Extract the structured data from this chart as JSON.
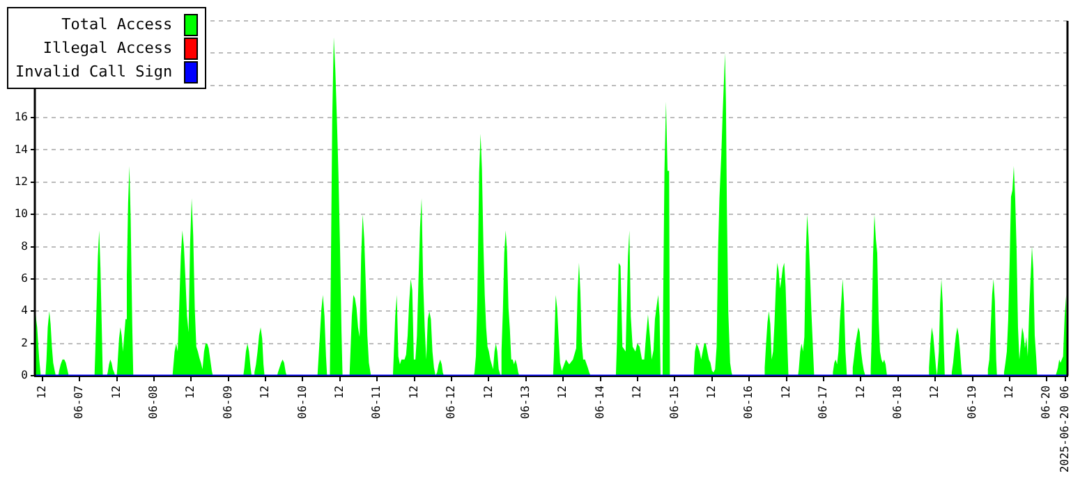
{
  "chart_data": {
    "type": "area",
    "legend": "top left",
    "grid": "y",
    "xlim": [
      "2025-06-06T09:35",
      "2025-06-20T06:40"
    ],
    "ylim": [
      0,
      22
    ],
    "yticks": [
      0,
      2,
      4,
      6,
      8,
      10,
      12,
      14,
      16,
      {
        "value": 18,
        "label": null
      },
      {
        "value": 20,
        "label": null
      },
      {
        "value": 22,
        "label": null
      }
    ],
    "xticks": [
      {
        "value": "2025-06-06T12:00",
        "label": "12"
      },
      {
        "value": "2025-06-07T00:00",
        "label": "06-07"
      },
      {
        "value": "2025-06-07T12:00",
        "label": "12"
      },
      {
        "value": "2025-06-08T00:00",
        "label": "06-08"
      },
      {
        "value": "2025-06-08T12:00",
        "label": "12"
      },
      {
        "value": "2025-06-09T00:00",
        "label": "06-09"
      },
      {
        "value": "2025-06-09T12:00",
        "label": "12"
      },
      {
        "value": "2025-06-10T00:00",
        "label": "06-10"
      },
      {
        "value": "2025-06-10T12:00",
        "label": "12"
      },
      {
        "value": "2025-06-11T00:00",
        "label": "06-11"
      },
      {
        "value": "2025-06-11T12:00",
        "label": "12"
      },
      {
        "value": "2025-06-12T00:00",
        "label": "06-12"
      },
      {
        "value": "2025-06-12T12:00",
        "label": "12"
      },
      {
        "value": "2025-06-13T00:00",
        "label": "06-13"
      },
      {
        "value": "2025-06-13T12:00",
        "label": "12"
      },
      {
        "value": "2025-06-14T00:00",
        "label": "06-14"
      },
      {
        "value": "2025-06-14T12:00",
        "label": "12"
      },
      {
        "value": "2025-06-15T00:00",
        "label": "06-15"
      },
      {
        "value": "2025-06-15T12:00",
        "label": "12"
      },
      {
        "value": "2025-06-16T00:00",
        "label": "06-16"
      },
      {
        "value": "2025-06-16T12:00",
        "label": "12"
      },
      {
        "value": "2025-06-17T00:00",
        "label": "06-17"
      },
      {
        "value": "2025-06-17T12:00",
        "label": "12"
      },
      {
        "value": "2025-06-18T00:00",
        "label": "06-18"
      },
      {
        "value": "2025-06-18T12:00",
        "label": "12"
      },
      {
        "value": "2025-06-19T00:00",
        "label": "06-19"
      },
      {
        "value": "2025-06-19T12:00",
        "label": "12"
      },
      {
        "value": "2025-06-20T00:00",
        "label": "06-20"
      },
      {
        "value": "2025-06-20T06:00",
        "label": "2025-06-20 06"
      }
    ],
    "series": [
      {
        "name": "Total Access",
        "color": "#00ff00",
        "x": [
          "2025-06-06T09:40",
          "2025-06-06T10:20",
          "2025-06-06T11:00",
          "2025-06-06T11:30",
          "2025-06-06T13:00",
          "2025-06-06T13:20",
          "2025-06-06T13:45",
          "2025-06-06T14:15",
          "2025-06-06T14:40",
          "2025-06-06T15:05",
          "2025-06-06T15:30",
          "2025-06-06T16:00",
          "2025-06-06T16:20",
          "2025-06-06T17:10",
          "2025-06-06T17:25",
          "2025-06-06T17:55",
          "2025-06-06T18:30",
          "2025-06-06T19:05",
          "2025-06-06T19:35",
          "2025-06-06T20:10",
          "2025-06-06T20:30",
          "2025-06-07T04:50",
          "2025-06-07T05:05",
          "2025-06-07T05:30",
          "2025-06-07T05:55",
          "2025-06-07T06:20",
          "2025-06-07T06:45",
          "2025-06-07T07:15",
          "2025-06-07T07:30",
          "2025-06-07T08:50",
          "2025-06-07T09:05",
          "2025-06-07T09:30",
          "2025-06-07T09:55",
          "2025-06-07T10:20",
          "2025-06-07T10:45",
          "2025-06-07T11:10",
          "2025-06-07T11:30",
          "2025-06-07T12:00",
          "2025-06-07T12:15",
          "2025-06-07T12:45",
          "2025-06-07T13:10",
          "2025-06-07T13:35",
          "2025-06-07T14:00",
          "2025-06-07T14:25",
          "2025-06-07T14:50",
          "2025-06-07T15:15",
          "2025-06-07T15:40",
          "2025-06-07T16:05",
          "2025-06-07T16:30",
          "2025-06-07T17:00",
          "2025-06-07T17:20",
          "2025-06-08T06:00",
          "2025-06-08T06:10",
          "2025-06-08T06:40",
          "2025-06-08T07:10",
          "2025-06-08T07:40",
          "2025-06-08T08:10",
          "2025-06-08T08:40",
          "2025-06-08T09:10",
          "2025-06-08T09:40",
          "2025-06-08T10:10",
          "2025-06-08T10:40",
          "2025-06-08T11:10",
          "2025-06-08T11:40",
          "2025-06-08T12:10",
          "2025-06-08T12:40",
          "2025-06-08T13:10",
          "2025-06-08T13:40",
          "2025-06-08T14:10",
          "2025-06-08T14:40",
          "2025-06-08T15:10",
          "2025-06-08T15:40",
          "2025-06-08T16:10",
          "2025-06-08T16:40",
          "2025-06-08T17:10",
          "2025-06-08T17:40",
          "2025-06-08T18:10",
          "2025-06-08T18:40",
          "2025-06-08T19:00",
          "2025-06-09T04:50",
          "2025-06-09T05:10",
          "2025-06-09T05:40",
          "2025-06-09T06:10",
          "2025-06-09T06:40",
          "2025-06-09T07:10",
          "2025-06-09T07:30",
          "2025-06-09T08:10",
          "2025-06-09T08:25",
          "2025-06-09T08:55",
          "2025-06-09T09:25",
          "2025-06-09T09:55",
          "2025-06-09T10:25",
          "2025-06-09T10:55",
          "2025-06-09T11:20",
          "2025-06-09T11:40",
          "2025-06-09T15:45",
          "2025-06-09T16:00",
          "2025-06-09T16:30",
          "2025-06-09T17:00",
          "2025-06-09T17:30",
          "2025-06-09T18:00",
          "2025-06-09T18:30",
          "2025-06-09T18:50",
          "2025-06-10T04:45",
          "2025-06-10T05:00",
          "2025-06-10T05:30",
          "2025-06-10T06:00",
          "2025-06-10T06:30",
          "2025-06-10T07:00",
          "2025-06-10T07:30",
          "2025-06-10T07:50",
          "2025-06-10T08:45",
          "2025-06-10T09:00",
          "2025-06-10T09:30",
          "2025-06-10T10:00",
          "2025-06-10T10:30",
          "2025-06-10T11:00",
          "2025-06-10T11:30",
          "2025-06-10T12:00",
          "2025-06-10T12:30",
          "2025-06-10T12:50",
          "2025-06-10T15:05",
          "2025-06-10T15:20",
          "2025-06-10T15:50",
          "2025-06-10T16:20",
          "2025-06-10T16:50",
          "2025-06-10T17:20",
          "2025-06-10T17:50",
          "2025-06-10T18:20",
          "2025-06-10T18:50",
          "2025-06-10T19:20",
          "2025-06-10T19:50",
          "2025-06-10T20:20",
          "2025-06-10T20:50",
          "2025-06-10T21:20",
          "2025-06-10T21:50",
          "2025-06-10T22:00",
          "2025-06-11T05:05",
          "2025-06-11T05:20",
          "2025-06-11T05:50",
          "2025-06-11T06:20",
          "2025-06-11T06:50",
          "2025-06-11T07:20",
          "2025-06-11T07:50",
          "2025-06-11T08:20",
          "2025-06-11T08:50",
          "2025-06-11T09:20",
          "2025-06-11T09:50",
          "2025-06-11T10:20",
          "2025-06-11T10:50",
          "2025-06-11T11:20",
          "2025-06-11T11:50",
          "2025-06-11T12:20",
          "2025-06-11T12:50",
          "2025-06-11T13:20",
          "2025-06-11T13:50",
          "2025-06-11T14:20",
          "2025-06-11T14:50",
          "2025-06-11T15:20",
          "2025-06-11T15:50",
          "2025-06-11T16:20",
          "2025-06-11T16:50",
          "2025-06-11T17:20",
          "2025-06-11T17:50",
          "2025-06-11T18:20",
          "2025-06-11T18:50",
          "2025-06-11T19:20",
          "2025-06-11T19:50",
          "2025-06-11T20:20",
          "2025-06-11T20:50",
          "2025-06-11T21:10",
          "2025-06-11T21:30",
          "2025-06-12T07:10",
          "2025-06-12T07:24",
          "2025-06-12T07:51",
          "2025-06-12T08:18",
          "2025-06-12T08:54",
          "2025-06-12T09:21",
          "2025-06-12T09:48",
          "2025-06-12T10:15",
          "2025-06-12T10:42",
          "2025-06-12T11:09",
          "2025-06-12T11:36",
          "2025-06-12T12:03",
          "2025-06-12T12:30",
          "2025-06-12T12:57",
          "2025-06-12T13:24",
          "2025-06-12T13:51",
          "2025-06-12T14:18",
          "2025-06-12T14:45",
          "2025-06-12T15:12",
          "2025-06-12T15:48",
          "2025-06-12T16:06",
          "2025-06-12T16:33",
          "2025-06-12T17:00",
          "2025-06-12T17:27",
          "2025-06-12T17:54",
          "2025-06-12T18:21",
          "2025-06-12T18:48",
          "2025-06-12T19:15",
          "2025-06-12T19:42",
          "2025-06-12T20:09",
          "2025-06-12T20:36",
          "2025-06-12T21:03",
          "2025-06-12T21:30",
          "2025-06-12T21:50",
          "2025-06-13T08:45",
          "2025-06-13T09:00",
          "2025-06-13T09:36",
          "2025-06-13T10:03",
          "2025-06-13T10:30",
          "2025-06-13T11:00",
          "2025-06-13T11:33",
          "2025-06-13T12:54",
          "2025-06-13T13:57",
          "2025-06-13T15:09",
          "2025-06-13T16:12",
          "2025-06-13T16:39",
          "2025-06-13T17:06",
          "2025-06-13T17:33",
          "2025-06-13T18:00",
          "2025-06-13T18:27",
          "2025-06-13T19:03",
          "2025-06-13T19:57",
          "2025-06-13T20:24",
          "2025-06-13T20:50",
          "2025-06-14T05:00",
          "2025-06-14T05:18",
          "2025-06-14T05:54",
          "2025-06-14T06:30",
          "2025-06-14T07:06",
          "2025-06-14T08:09",
          "2025-06-14T08:54",
          "2025-06-14T09:21",
          "2025-06-14T09:48",
          "2025-06-14T10:24",
          "2025-06-14T11:18",
          "2025-06-14T11:54",
          "2025-06-14T12:39",
          "2025-06-14T13:24",
          "2025-06-14T14:09",
          "2025-06-14T14:45",
          "2025-06-14T15:21",
          "2025-06-14T15:57",
          "2025-06-14T16:33",
          "2025-06-14T17:09",
          "2025-06-14T17:36",
          "2025-06-14T18:12",
          "2025-06-14T18:39",
          "2025-06-14T19:06",
          "2025-06-14T19:24",
          "2025-06-14T19:55",
          "2025-06-14T20:05",
          "2025-06-14T20:40",
          "2025-06-14T21:10",
          "2025-06-14T21:40",
          "2025-06-14T22:10",
          "2025-06-14T22:25",
          "2025-06-15T05:50",
          "2025-06-15T06:10",
          "2025-06-15T06:30",
          "2025-06-15T07:00",
          "2025-06-15T07:30",
          "2025-06-15T08:00",
          "2025-06-15T08:30",
          "2025-06-15T09:00",
          "2025-06-15T09:30",
          "2025-06-15T10:00",
          "2025-06-15T10:30",
          "2025-06-15T11:00",
          "2025-06-15T11:30",
          "2025-06-15T12:00",
          "2025-06-15T12:30",
          "2025-06-15T13:00",
          "2025-06-15T13:30",
          "2025-06-15T13:57",
          "2025-06-15T14:24",
          "2025-06-15T15:00",
          "2025-06-15T15:27",
          "2025-06-15T15:54",
          "2025-06-15T16:12",
          "2025-06-15T16:30",
          "2025-06-15T16:48",
          "2025-06-15T17:15",
          "2025-06-15T17:51",
          "2025-06-15T18:18",
          "2025-06-15T18:36",
          "2025-06-16T04:45",
          "2025-06-16T05:00",
          "2025-06-16T05:27",
          "2025-06-16T05:54",
          "2025-06-16T06:21",
          "2025-06-16T06:48",
          "2025-06-16T07:15",
          "2025-06-16T07:42",
          "2025-06-16T08:09",
          "2025-06-16T08:36",
          "2025-06-16T09:03",
          "2025-06-16T09:30",
          "2025-06-16T09:57",
          "2025-06-16T10:24",
          "2025-06-16T10:51",
          "2025-06-16T11:18",
          "2025-06-16T11:45",
          "2025-06-16T12:12",
          "2025-06-16T12:39",
          "2025-06-16T15:45",
          "2025-06-16T16:00",
          "2025-06-16T16:27",
          "2025-06-16T16:54",
          "2025-06-16T17:21",
          "2025-06-16T17:48",
          "2025-06-16T18:15",
          "2025-06-16T18:42",
          "2025-06-16T19:09",
          "2025-06-16T19:36",
          "2025-06-16T20:03",
          "2025-06-16T20:30",
          "2025-06-16T20:57",
          "2025-06-17T02:45",
          "2025-06-17T03:00",
          "2025-06-17T03:27",
          "2025-06-17T03:54",
          "2025-06-17T04:21",
          "2025-06-17T04:48",
          "2025-06-17T05:15",
          "2025-06-17T05:42",
          "2025-06-17T06:09",
          "2025-06-17T06:36",
          "2025-06-17T07:03",
          "2025-06-17T07:30",
          "2025-06-17T09:10",
          "2025-06-17T09:24",
          "2025-06-17T09:51",
          "2025-06-17T10:18",
          "2025-06-17T10:45",
          "2025-06-17T11:12",
          "2025-06-17T11:39",
          "2025-06-17T12:06",
          "2025-06-17T12:33",
          "2025-06-17T13:00",
          "2025-06-17T13:27",
          "2025-06-17T15:00",
          "2025-06-17T15:12",
          "2025-06-17T15:30",
          "2025-06-17T15:57",
          "2025-06-17T16:24",
          "2025-06-17T16:51",
          "2025-06-17T17:18",
          "2025-06-17T17:45",
          "2025-06-17T18:12",
          "2025-06-17T18:39",
          "2025-06-17T19:06",
          "2025-06-17T19:33",
          "2025-06-17T20:00",
          "2025-06-17T20:27",
          "2025-06-18T09:45",
          "2025-06-18T10:00",
          "2025-06-18T10:27",
          "2025-06-18T10:54",
          "2025-06-18T11:21",
          "2025-06-18T11:48",
          "2025-06-18T12:15",
          "2025-06-18T12:35",
          "2025-06-18T12:50",
          "2025-06-18T13:10",
          "2025-06-18T13:35",
          "2025-06-18T14:00",
          "2025-06-18T14:25",
          "2025-06-18T14:50",
          "2025-06-18T15:05",
          "2025-06-18T17:05",
          "2025-06-18T17:20",
          "2025-06-18T17:47",
          "2025-06-18T18:14",
          "2025-06-18T18:41",
          "2025-06-18T19:08",
          "2025-06-18T19:35",
          "2025-06-18T20:02",
          "2025-06-18T20:24",
          "2025-06-18T20:40",
          "2025-06-19T04:45",
          "2025-06-19T05:00",
          "2025-06-19T05:27",
          "2025-06-19T05:54",
          "2025-06-19T06:21",
          "2025-06-19T06:48",
          "2025-06-19T07:15",
          "2025-06-19T07:40",
          "2025-06-19T07:55",
          "2025-06-19T10:00",
          "2025-06-19T10:12",
          "2025-06-19T10:39",
          "2025-06-19T11:06",
          "2025-06-19T11:33",
          "2025-06-19T12:00",
          "2025-06-19T12:27",
          "2025-06-19T12:54",
          "2025-06-19T13:21",
          "2025-06-19T13:48",
          "2025-06-19T14:15",
          "2025-06-19T14:42",
          "2025-06-19T15:09",
          "2025-06-19T15:36",
          "2025-06-19T16:03",
          "2025-06-19T16:30",
          "2025-06-19T16:57",
          "2025-06-19T17:24",
          "2025-06-19T17:51",
          "2025-06-19T18:18",
          "2025-06-19T18:45",
          "2025-06-19T19:12",
          "2025-06-19T19:39",
          "2025-06-19T20:06",
          "2025-06-19T20:33",
          "2025-06-19T20:54",
          "2025-06-20T02:50",
          "2025-06-20T03:10",
          "2025-06-20T03:35",
          "2025-06-20T04:00",
          "2025-06-20T04:25",
          "2025-06-20T04:50",
          "2025-06-20T05:15",
          "2025-06-20T05:45",
          "2025-06-20T06:15",
          "2025-06-20T06:35"
        ],
        "values": [
          4,
          3,
          1,
          0,
          0,
          1,
          3,
          4,
          3.2,
          1.8,
          0.8,
          0.3,
          0,
          0,
          0.3,
          0.7,
          1,
          1,
          0.8,
          0.3,
          0,
          0,
          1.5,
          4.4,
          7.4,
          9,
          6.7,
          2.3,
          0,
          0,
          0.2,
          0.7,
          1,
          0.8,
          0.4,
          0.2,
          0,
          0,
          0.7,
          2.3,
          3,
          2.5,
          1.5,
          2.5,
          3.5,
          6.2,
          10.7,
          13,
          9.7,
          3.2,
          0,
          0,
          0.4,
          1.5,
          2,
          1.5,
          4.4,
          7.4,
          9,
          8,
          6,
          3.7,
          2.7,
          8.2,
          11,
          8.7,
          4.2,
          1.8,
          1.5,
          1.1,
          0.8,
          0.4,
          1.5,
          2,
          2,
          1.7,
          1,
          0.3,
          0,
          0,
          0.5,
          1.5,
          2,
          1.5,
          0.5,
          0,
          0,
          0.2,
          0.7,
          1.5,
          2.5,
          3,
          2.3,
          0.7,
          0,
          0,
          0.2,
          0.5,
          0.8,
          1,
          0.8,
          0.2,
          0,
          0,
          0.8,
          2.4,
          4.1,
          5,
          3.7,
          1.2,
          0,
          0,
          5.2,
          15.8,
          21,
          19,
          16,
          12.6,
          8.2,
          2.7,
          0,
          0,
          1.2,
          3.7,
          5,
          4.8,
          4.2,
          3,
          2.4,
          7.4,
          10,
          8.5,
          5.6,
          2.5,
          0.8,
          0.2,
          0,
          0,
          1.2,
          3.7,
          5,
          1.2,
          0.7,
          1,
          1,
          1,
          1.3,
          2.5,
          4.6,
          6,
          5.3,
          1,
          1,
          2.5,
          6,
          9.2,
          11,
          5.8,
          3,
          1,
          3.5,
          4,
          3.5,
          1.5,
          0.5,
          0,
          0.2,
          0.7,
          1,
          0.7,
          0.2,
          0,
          0,
          0.2,
          1.2,
          4.6,
          12.6,
          15,
          12.8,
          8.3,
          5,
          3,
          1.8,
          1.5,
          1,
          0.7,
          0.4,
          1.5,
          2,
          1.5,
          0.4,
          0,
          1.5,
          4,
          7.6,
          9,
          7.7,
          4.2,
          2.9,
          1,
          1,
          0.7,
          1,
          0.7,
          0.2,
          0,
          0,
          1.2,
          5,
          4.2,
          2.5,
          0.8,
          0.3,
          1,
          0.7,
          1,
          1.7,
          5.2,
          7,
          5.2,
          2,
          1,
          1,
          0.5,
          0.2,
          0,
          0,
          1.8,
          7,
          6.8,
          1.8,
          1.5,
          7.4,
          9,
          3.7,
          1.8,
          1.5,
          2,
          1.8,
          1,
          1,
          2.5,
          3.8,
          2.5,
          1,
          1.6,
          3.5,
          4.4,
          5,
          3.7,
          0,
          0,
          1.2,
          12.7,
          17,
          12.7,
          12.7,
          0,
          0,
          0.4,
          1.5,
          2,
          1.8,
          1.5,
          1,
          1.5,
          2,
          2,
          1.5,
          1,
          0.8,
          0.3,
          0.2,
          0.4,
          1.8,
          7.7,
          11,
          13.7,
          16.3,
          18.5,
          20,
          17,
          10.5,
          4,
          0.8,
          0.2,
          0,
          0,
          0.5,
          2,
          3.3,
          4,
          3.2,
          1,
          1.5,
          3.2,
          5.5,
          7,
          6.5,
          5.4,
          6,
          6.7,
          7,
          5.5,
          2.6,
          0,
          0,
          0.4,
          1.5,
          2,
          1.5,
          2.4,
          7.5,
          10,
          8.6,
          6.5,
          4,
          2,
          0,
          0,
          0.2,
          0.8,
          1,
          0.7,
          1.5,
          3.4,
          4.6,
          6,
          4.5,
          1.5,
          0,
          0,
          0.5,
          1.2,
          2,
          2.5,
          3,
          2.7,
          1.5,
          0.8,
          0.3,
          0,
          0,
          0.4,
          2.4,
          7.5,
          10,
          8.5,
          7.6,
          3.5,
          1.5,
          1,
          0.8,
          1,
          0.7,
          0,
          0,
          0.5,
          2,
          3,
          2.5,
          1.5,
          0.5,
          0,
          0,
          1.5,
          4.5,
          6,
          4.5,
          1.5,
          0,
          0,
          0.2,
          0.8,
          1.7,
          2.5,
          3,
          2.5,
          1.5,
          0.5,
          0,
          0,
          0.4,
          1,
          3,
          5,
          6,
          4.6,
          1,
          0,
          0,
          0.2,
          0.8,
          1.5,
          3.5,
          7,
          11.1,
          11.5,
          13,
          11,
          7.8,
          3,
          1,
          2,
          3,
          2.6,
          1.7,
          2.4,
          1.2,
          4,
          6,
          8,
          6.6,
          2.5,
          1.2,
          0,
          0,
          0.2,
          0.5,
          1,
          0.8,
          1,
          1.2,
          3.7,
          5,
          5
        ]
      },
      {
        "name": "Illegal Access",
        "color": "#ff0000",
        "type": "line"
      },
      {
        "name": "Invalid Call Sign",
        "color": "#0000ff",
        "type": "line",
        "x": [
          "2025-06-06T09:35",
          "2025-06-20T06:40"
        ],
        "values": [
          0,
          0
        ]
      }
    ]
  }
}
